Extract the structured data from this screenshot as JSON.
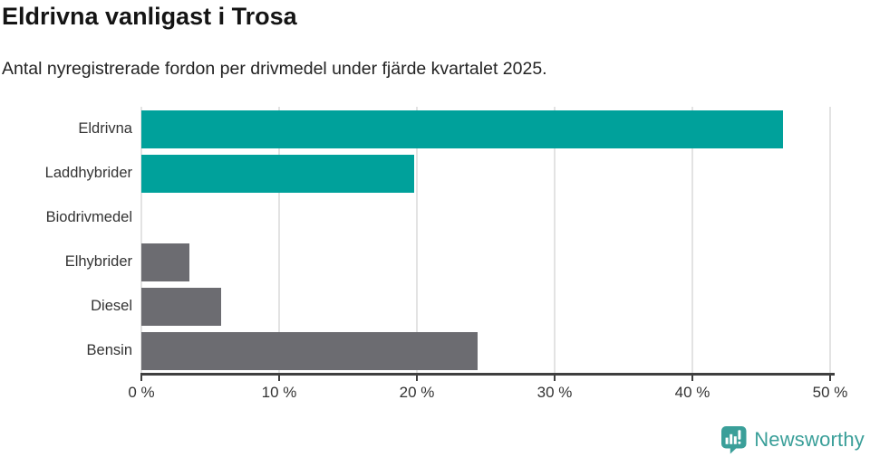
{
  "chart_data": {
    "type": "bar",
    "orientation": "horizontal",
    "title": "Eldrivna vanligast i Trosa",
    "subtitle": "Antal nyregistrerade fordon per drivmedel under fjärde kvartalet 2025.",
    "categories": [
      "Eldrivna",
      "Laddhybrider",
      "Biodrivmedel",
      "Elhybrider",
      "Diesel",
      "Bensin"
    ],
    "values": [
      46.6,
      19.8,
      0,
      3.5,
      5.8,
      24.4
    ],
    "unit": "%",
    "xlim": [
      0,
      50
    ],
    "x_tick_values": [
      0,
      10,
      20,
      30,
      40,
      50
    ],
    "x_ticks": [
      "0 %",
      "10 %",
      "20 %",
      "30 %",
      "40 %",
      "50 %"
    ],
    "grid": true,
    "legend": false,
    "bar_colors": [
      "#00a19b",
      "#00a19b",
      "#6c6c71",
      "#6c6c71",
      "#6c6c71",
      "#6c6c71"
    ],
    "highlight_color": "#00a19b",
    "default_color": "#6c6c71",
    "gridline_color": "#e3e3e3",
    "axis_color": "#3f3f3f"
  },
  "footer": {
    "brand": "Newsworthy",
    "brand_color": "#3a9f99",
    "logo_icon": "newsworthy-chart-bubble-icon"
  }
}
